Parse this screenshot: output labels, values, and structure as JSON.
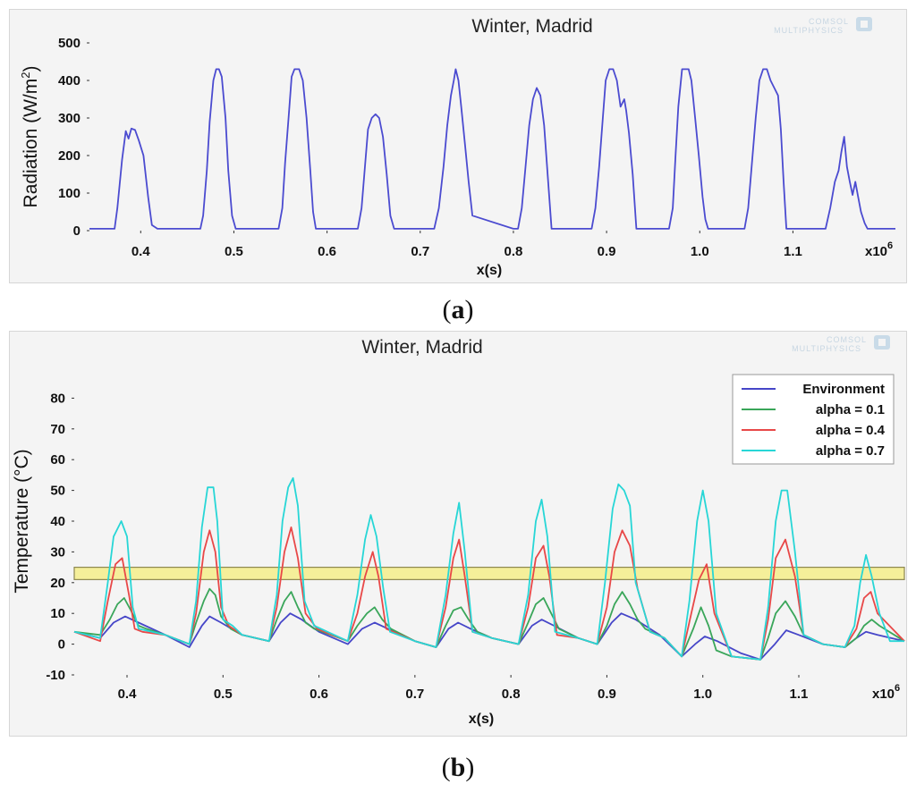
{
  "chart_data": [
    {
      "id": "a",
      "type": "line",
      "title": "Winter, Madrid",
      "xlabel": "x(s)",
      "ylabel": "Radiation (W/m",
      "ylabel_sup": "2",
      "ylabel_close": ")",
      "x_multiplier": "x10",
      "x_multiplier_exp": "6",
      "xlim": [
        0.345,
        1.21
      ],
      "ylim": [
        0,
        500
      ],
      "xticks": [
        "0.4",
        "0.5",
        "0.6",
        "0.7",
        "0.8",
        "0.9",
        "1.0",
        "1.1"
      ],
      "xtick_values": [
        0.4,
        0.5,
        0.6,
        0.7,
        0.8,
        0.9,
        1.0,
        1.1
      ],
      "yticks": [
        "0",
        "100",
        "200",
        "300",
        "400",
        "500"
      ],
      "ytick_values": [
        0,
        100,
        200,
        300,
        400,
        500
      ],
      "watermark": [
        "COMSOL",
        "MULTIPHYSICS"
      ],
      "series": [
        {
          "name": "Radiation",
          "color": "#4b4bd0",
          "x": [
            0.345,
            0.372,
            0.375,
            0.38,
            0.384,
            0.387,
            0.39,
            0.394,
            0.398,
            0.403,
            0.408,
            0.412,
            0.418,
            0.464,
            0.467,
            0.471,
            0.474,
            0.478,
            0.481,
            0.484,
            0.487,
            0.491,
            0.494,
            0.498,
            0.502,
            0.548,
            0.552,
            0.555,
            0.559,
            0.562,
            0.565,
            0.57,
            0.574,
            0.578,
            0.582,
            0.585,
            0.588,
            0.633,
            0.637,
            0.641,
            0.644,
            0.648,
            0.652,
            0.656,
            0.66,
            0.664,
            0.668,
            0.672,
            0.715,
            0.72,
            0.725,
            0.729,
            0.733,
            0.736,
            0.738,
            0.741,
            0.744,
            0.748,
            0.752,
            0.756,
            0.8,
            0.805,
            0.809,
            0.813,
            0.817,
            0.821,
            0.825,
            0.829,
            0.833,
            0.837,
            0.841,
            0.884,
            0.888,
            0.892,
            0.896,
            0.899,
            0.903,
            0.907,
            0.911,
            0.915,
            0.919,
            0.921,
            0.924,
            0.928,
            0.932,
            0.967,
            0.971,
            0.974,
            0.977,
            0.981,
            0.984,
            0.988,
            0.991,
            0.995,
            0.999,
            1.003,
            1.006,
            1.009,
            1.048,
            1.052,
            1.056,
            1.06,
            1.064,
            1.068,
            1.072,
            1.076,
            1.08,
            1.084,
            1.087,
            1.09,
            1.093,
            1.135,
            1.14,
            1.145,
            1.149,
            1.152,
            1.155,
            1.158,
            1.161,
            1.164,
            1.167,
            1.17,
            1.173,
            1.177,
            1.18,
            1.184,
            1.21
          ],
          "y": [
            5,
            5,
            60,
            190,
            265,
            245,
            272,
            268,
            240,
            200,
            90,
            15,
            5,
            5,
            40,
            160,
            290,
            400,
            430,
            430,
            410,
            300,
            160,
            40,
            5,
            5,
            60,
            180,
            310,
            410,
            430,
            430,
            400,
            300,
            160,
            50,
            5,
            5,
            60,
            180,
            270,
            300,
            310,
            300,
            250,
            150,
            40,
            5,
            5,
            60,
            170,
            280,
            360,
            400,
            430,
            400,
            330,
            230,
            130,
            40,
            5,
            5,
            60,
            170,
            280,
            350,
            380,
            360,
            280,
            140,
            5,
            5,
            60,
            170,
            300,
            400,
            430,
            430,
            400,
            330,
            350,
            320,
            260,
            150,
            5,
            5,
            60,
            200,
            330,
            430,
            430,
            430,
            400,
            300,
            200,
            90,
            30,
            5,
            5,
            60,
            180,
            300,
            400,
            430,
            430,
            400,
            380,
            360,
            270,
            130,
            5,
            5,
            60,
            130,
            160,
            210,
            250,
            170,
            130,
            95,
            130,
            90,
            50,
            20,
            5,
            5,
            5
          ]
        }
      ]
    },
    {
      "id": "b",
      "type": "line",
      "title": "Winter, Madrid",
      "xlabel": "x(s)",
      "ylabel": "Temperature (°C)",
      "x_multiplier": "x10",
      "x_multiplier_exp": "6",
      "xlim": [
        0.345,
        1.21
      ],
      "ylim": [
        -10,
        90
      ],
      "xticks": [
        "0.4",
        "0.5",
        "0.6",
        "0.7",
        "0.8",
        "0.9",
        "1.0",
        "1.1"
      ],
      "xtick_values": [
        0.4,
        0.5,
        0.6,
        0.7,
        0.8,
        0.9,
        1.0,
        1.1
      ],
      "yticks": [
        "-10",
        "0",
        "10",
        "20",
        "30",
        "40",
        "50",
        "60",
        "70",
        "80"
      ],
      "ytick_values": [
        -10,
        0,
        10,
        20,
        30,
        40,
        50,
        60,
        70,
        80
      ],
      "watermark": [
        "COMSOL",
        "MULTIPHYSICS"
      ],
      "highlight_band": {
        "y0": 21,
        "y1": 25,
        "color": "#f5ef9a",
        "border": "#8c8650"
      },
      "legend": [
        "Environment",
        "alpha = 0.1",
        "alpha = 0.4",
        "alpha = 0.7"
      ],
      "series": [
        {
          "name": "Environment",
          "color": "#4646c8",
          "x": [
            0.345,
            0.372,
            0.386,
            0.398,
            0.412,
            0.44,
            0.465,
            0.478,
            0.486,
            0.498,
            0.52,
            0.548,
            0.56,
            0.57,
            0.582,
            0.6,
            0.63,
            0.645,
            0.658,
            0.672,
            0.7,
            0.722,
            0.735,
            0.745,
            0.758,
            0.78,
            0.808,
            0.822,
            0.832,
            0.845,
            0.87,
            0.89,
            0.905,
            0.915,
            0.93,
            0.955,
            0.978,
            0.992,
            1.002,
            1.015,
            1.04,
            1.06,
            1.075,
            1.087,
            1.1,
            1.125,
            1.148,
            1.16,
            1.17,
            1.182,
            1.21
          ],
          "y": [
            4,
            2,
            7,
            9,
            7,
            3,
            -1,
            6,
            9,
            7,
            3,
            1,
            7,
            10,
            8,
            4,
            0,
            5,
            7,
            5,
            1,
            -1,
            5,
            7,
            5,
            2,
            0,
            6,
            8,
            6,
            2,
            0,
            7,
            10,
            8,
            3,
            -4,
            0,
            2.5,
            1,
            -3,
            -5,
            0,
            4.5,
            3,
            0,
            -1,
            2,
            4,
            3,
            1
          ]
        },
        {
          "name": "alpha = 0.1",
          "color": "#3aa65a",
          "x": [
            0.345,
            0.372,
            0.382,
            0.39,
            0.397,
            0.404,
            0.412,
            0.42,
            0.44,
            0.465,
            0.472,
            0.48,
            0.486,
            0.492,
            0.498,
            0.508,
            0.52,
            0.548,
            0.556,
            0.564,
            0.571,
            0.578,
            0.586,
            0.595,
            0.63,
            0.64,
            0.65,
            0.658,
            0.666,
            0.675,
            0.7,
            0.722,
            0.732,
            0.74,
            0.748,
            0.756,
            0.765,
            0.78,
            0.808,
            0.818,
            0.826,
            0.834,
            0.842,
            0.85,
            0.87,
            0.89,
            0.9,
            0.908,
            0.916,
            0.924,
            0.932,
            0.94,
            0.96,
            0.978,
            0.99,
            0.998,
            1.006,
            1.014,
            1.03,
            1.06,
            1.068,
            1.076,
            1.086,
            1.096,
            1.105,
            1.125,
            1.148,
            1.16,
            1.168,
            1.176,
            1.184,
            1.21
          ],
          "y": [
            4,
            3,
            8,
            13,
            15,
            11,
            6,
            5,
            3,
            0,
            7,
            14,
            18,
            16,
            9,
            5,
            3,
            1,
            8,
            14,
            17,
            12,
            7,
            5,
            1,
            6,
            10,
            12,
            8,
            5,
            1,
            -1,
            6,
            11,
            12,
            8,
            4,
            2,
            0,
            7,
            13,
            15,
            10,
            5,
            2,
            0,
            6,
            13,
            17,
            13,
            8,
            5,
            2,
            -4,
            5,
            12,
            6,
            -2,
            -4,
            -5,
            2,
            10,
            14,
            9,
            3,
            0,
            -1,
            2,
            6,
            8,
            6,
            1
          ]
        },
        {
          "name": "alpha = 0.4",
          "color": "#e84848",
          "x": [
            0.345,
            0.372,
            0.38,
            0.388,
            0.395,
            0.402,
            0.408,
            0.416,
            0.44,
            0.465,
            0.472,
            0.48,
            0.486,
            0.492,
            0.498,
            0.506,
            0.52,
            0.548,
            0.556,
            0.564,
            0.571,
            0.578,
            0.586,
            0.598,
            0.63,
            0.64,
            0.648,
            0.656,
            0.662,
            0.67,
            0.7,
            0.722,
            0.732,
            0.74,
            0.746,
            0.752,
            0.76,
            0.78,
            0.808,
            0.818,
            0.826,
            0.834,
            0.84,
            0.848,
            0.87,
            0.89,
            0.9,
            0.908,
            0.916,
            0.924,
            0.932,
            0.945,
            0.96,
            0.978,
            0.988,
            0.996,
            1.004,
            1.012,
            1.03,
            1.06,
            1.068,
            1.076,
            1.086,
            1.096,
            1.105,
            1.125,
            1.148,
            1.16,
            1.168,
            1.175,
            1.182,
            1.21
          ],
          "y": [
            4,
            1,
            14,
            26,
            28,
            16,
            5,
            4,
            3,
            0,
            10,
            30,
            37,
            30,
            12,
            6,
            3,
            1,
            12,
            30,
            38,
            28,
            10,
            5,
            1,
            10,
            22,
            30,
            22,
            5,
            1,
            -1,
            12,
            28,
            34,
            22,
            4,
            2,
            0,
            12,
            28,
            32,
            22,
            3,
            2,
            0,
            12,
            30,
            37,
            32,
            18,
            4,
            2,
            -4,
            10,
            21,
            26,
            10,
            -4,
            -5,
            8,
            28,
            34,
            22,
            3,
            0,
            -1,
            5,
            15,
            17,
            10,
            1
          ]
        },
        {
          "name": "alpha = 0.7",
          "color": "#27d6d6",
          "x": [
            0.345,
            0.372,
            0.38,
            0.386,
            0.394,
            0.4,
            0.406,
            0.412,
            0.44,
            0.465,
            0.472,
            0.478,
            0.484,
            0.49,
            0.494,
            0.5,
            0.51,
            0.52,
            0.548,
            0.556,
            0.562,
            0.568,
            0.573,
            0.578,
            0.585,
            0.595,
            0.63,
            0.64,
            0.648,
            0.654,
            0.66,
            0.667,
            0.674,
            0.7,
            0.722,
            0.732,
            0.74,
            0.746,
            0.752,
            0.76,
            0.78,
            0.808,
            0.818,
            0.826,
            0.832,
            0.838,
            0.846,
            0.87,
            0.89,
            0.898,
            0.906,
            0.912,
            0.918,
            0.924,
            0.93,
            0.945,
            0.96,
            0.978,
            0.986,
            0.994,
            1.0,
            1.006,
            1.014,
            1.03,
            1.06,
            1.068,
            1.076,
            1.082,
            1.088,
            1.096,
            1.105,
            1.125,
            1.148,
            1.158,
            1.164,
            1.17,
            1.176,
            1.184,
            1.195,
            1.21
          ],
          "y": [
            4,
            2,
            20,
            35,
            40,
            35,
            12,
            5,
            3,
            0,
            14,
            38,
            51,
            51,
            40,
            8,
            6,
            3,
            1,
            16,
            40,
            51,
            54,
            45,
            14,
            6,
            1,
            16,
            34,
            42,
            35,
            18,
            4,
            1,
            -1,
            16,
            36,
            46,
            30,
            4,
            2,
            0,
            16,
            40,
            47,
            35,
            4,
            2,
            0,
            20,
            44,
            52,
            50,
            45,
            20,
            4,
            2,
            -4,
            14,
            40,
            50,
            40,
            10,
            -4,
            -5,
            12,
            40,
            50,
            50,
            30,
            3,
            0,
            -1,
            6,
            20,
            29,
            22,
            10,
            1,
            1
          ]
        }
      ]
    }
  ],
  "captions": {
    "a_letter": "a",
    "a_open": "(",
    "a_close": ")",
    "b_letter": "b",
    "b_open": "(",
    "b_close": ")"
  }
}
